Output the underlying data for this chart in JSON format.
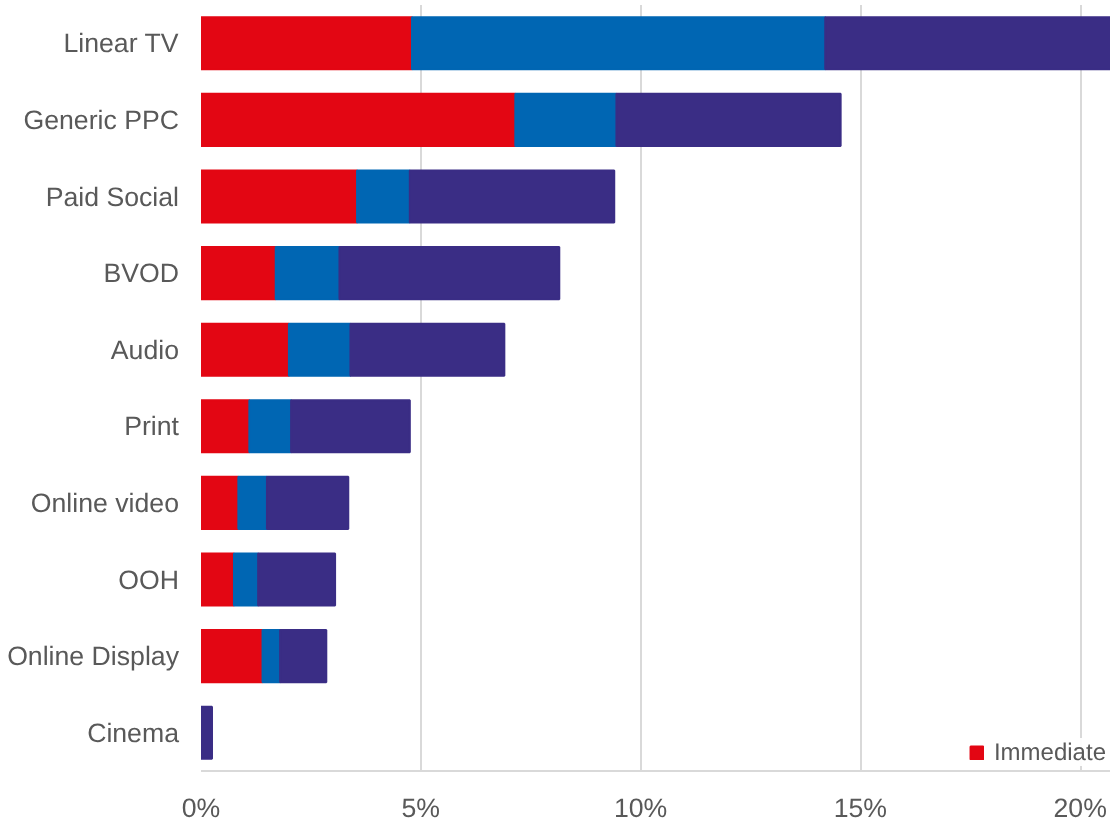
{
  "chart_data": {
    "type": "bar",
    "orientation": "horizontal",
    "stacked": true,
    "categories": [
      "Linear TV",
      "Generic PPC",
      "Paid Social",
      "BVOD",
      "Audio",
      "Print",
      "Online video",
      "OOH",
      "Online Display",
      "Cinema"
    ],
    "series": [
      {
        "name": "Immediate",
        "color": "#e30613",
        "values": [
          4.8,
          7.15,
          3.55,
          1.7,
          2.0,
          1.1,
          0.85,
          0.75,
          1.4,
          null
        ]
      },
      {
        "color": "#0066b3",
        "values": [
          9.4,
          2.3,
          1.2,
          1.45,
          1.4,
          0.95,
          0.65,
          0.55,
          0.4,
          null
        ]
      },
      {
        "color": "#3a2d85",
        "values": [
          6.5,
          5.1,
          4.65,
          5.0,
          3.5,
          2.7,
          1.85,
          1.75,
          1.05,
          0.25
        ]
      }
    ],
    "xlim": [
      0,
      20.7
    ],
    "xticks": [
      {
        "value": 0,
        "label": "0%"
      },
      {
        "value": 5,
        "label": "5%"
      },
      {
        "value": 10,
        "label": "10%"
      },
      {
        "value": 15,
        "label": "15%"
      },
      {
        "value": 20,
        "label": "20%"
      }
    ],
    "grid": "x",
    "legend": "bottom right"
  }
}
